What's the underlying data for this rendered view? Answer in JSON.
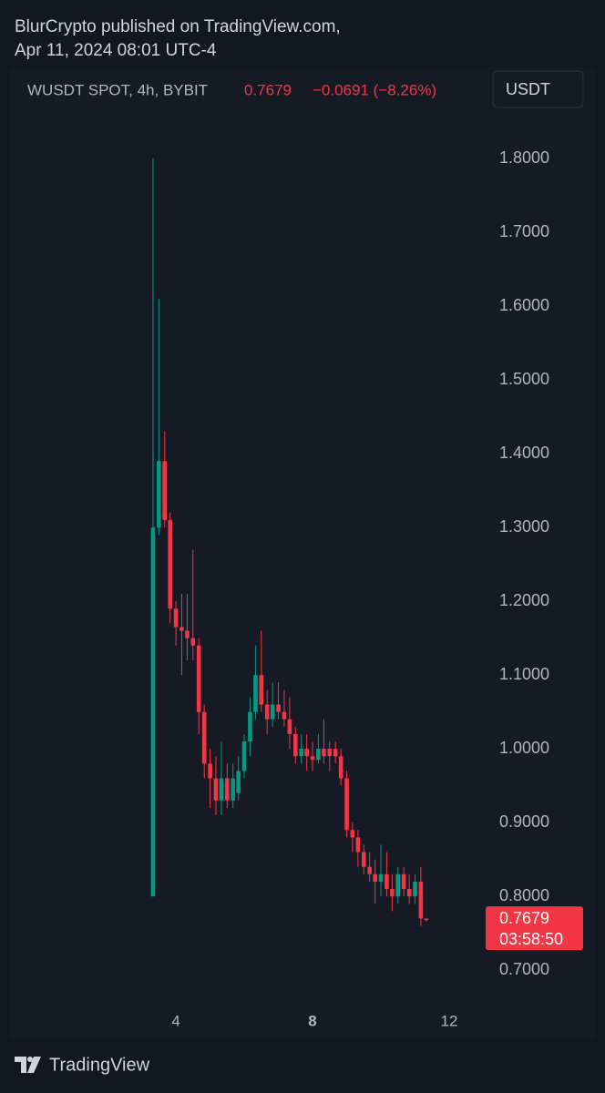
{
  "header": {
    "publisher": "BlurCrypto published on TradingView.com,",
    "date": "Apr 11, 2024 08:01 UTC-4"
  },
  "chart_data": {
    "type": "candlestick",
    "symbol": "WUSDT SPOT, 4h, BYBIT",
    "change": "−0.0691 (−8.26%)",
    "currency": "USDT",
    "last_price": {
      "value": 0.7679,
      "label": "0.7679",
      "countdown": "03:58:50"
    },
    "up_color": "#089981",
    "down_color": "#f23645",
    "x": [
      3.33,
      3.5,
      3.67,
      3.83,
      4,
      4.17,
      4.33,
      4.5,
      4.67,
      4.83,
      5,
      5.17,
      5.33,
      5.5,
      5.67,
      5.83,
      6,
      6.17,
      6.33,
      6.5,
      6.67,
      6.83,
      7,
      7.17,
      7.33,
      7.5,
      7.67,
      7.83,
      8,
      8.17,
      8.33,
      8.5,
      8.67,
      8.83,
      9,
      9.17,
      9.33,
      9.5,
      9.67,
      9.83,
      10,
      10.17,
      10.33,
      10.5,
      10.67,
      10.83,
      11,
      11.17,
      11.33
    ],
    "open": [
      0.8,
      1.3,
      1.39,
      1.31,
      1.19,
      1.165,
      1.16,
      1.15,
      1.14,
      1.05,
      0.98,
      0.96,
      0.93,
      0.96,
      0.93,
      0.94,
      0.97,
      1.01,
      1.05,
      1.1,
      1.06,
      1.04,
      1.06,
      1.05,
      1.04,
      1.02,
      0.99,
      1.0,
      0.99,
      0.985,
      1.0,
      1.0,
      1.0,
      0.99,
      0.96,
      0.89,
      0.88,
      0.86,
      0.84,
      0.83,
      0.82,
      0.83,
      0.81,
      0.8,
      0.83,
      0.81,
      0.8,
      0.82,
      0.77
    ],
    "high": [
      1.8,
      1.61,
      1.43,
      1.32,
      1.2,
      1.21,
      1.21,
      1.27,
      1.15,
      1.06,
      1.0,
      0.99,
      1.01,
      0.98,
      0.98,
      0.99,
      1.02,
      1.07,
      1.14,
      1.16,
      1.08,
      1.09,
      1.09,
      1.08,
      1.07,
      1.03,
      1.02,
      1.02,
      1.01,
      1.02,
      1.04,
      1.01,
      1.01,
      1.0,
      0.97,
      0.9,
      0.89,
      0.87,
      0.86,
      0.85,
      0.87,
      0.86,
      0.83,
      0.84,
      0.84,
      0.83,
      0.83,
      0.84,
      0.77
    ],
    "low": [
      0.8,
      1.29,
      1.3,
      1.17,
      1.14,
      1.1,
      1.12,
      1.12,
      1.02,
      0.96,
      0.92,
      0.91,
      0.91,
      0.92,
      0.92,
      0.93,
      0.96,
      0.99,
      1.04,
      1.05,
      1.02,
      1.03,
      1.04,
      1.03,
      1.0,
      0.98,
      0.98,
      0.97,
      0.97,
      0.98,
      0.98,
      0.97,
      0.98,
      0.95,
      0.88,
      0.86,
      0.84,
      0.83,
      0.82,
      0.79,
      0.8,
      0.8,
      0.78,
      0.79,
      0.8,
      0.79,
      0.79,
      0.76,
      0.766
    ],
    "close": [
      1.3,
      1.39,
      1.31,
      1.19,
      1.165,
      1.16,
      1.15,
      1.14,
      1.05,
      0.98,
      0.96,
      0.93,
      0.96,
      0.93,
      0.96,
      0.97,
      1.01,
      1.05,
      1.1,
      1.06,
      1.04,
      1.06,
      1.05,
      1.04,
      1.02,
      0.99,
      1.0,
      0.99,
      0.985,
      1.0,
      0.99,
      0.99,
      0.99,
      0.96,
      0.89,
      0.88,
      0.86,
      0.84,
      0.83,
      0.82,
      0.83,
      0.81,
      0.8,
      0.83,
      0.81,
      0.8,
      0.82,
      0.77,
      0.7679
    ],
    "xlim": [
      -1.15,
      13.12
    ],
    "xticks": [
      4,
      8,
      12
    ],
    "ylim": [
      0.657,
      1.842
    ],
    "yticks": [
      {
        "value": 0.7,
        "label": "0.7000"
      },
      {
        "value": 0.8,
        "label": "0.8000"
      },
      {
        "value": 0.9,
        "label": "0.9000"
      },
      {
        "value": 1.0,
        "label": "1.0000"
      },
      {
        "value": 1.1,
        "label": "1.1000"
      },
      {
        "value": 1.2,
        "label": "1.2000"
      },
      {
        "value": 1.3,
        "label": "1.3000"
      },
      {
        "value": 1.4,
        "label": "1.4000"
      },
      {
        "value": 1.5,
        "label": "1.5000"
      },
      {
        "value": 1.6,
        "label": "1.6000"
      },
      {
        "value": 1.7,
        "label": "1.7000"
      },
      {
        "value": 1.8,
        "label": "1.8000"
      }
    ]
  },
  "footer": {
    "brand": "TradingView"
  }
}
